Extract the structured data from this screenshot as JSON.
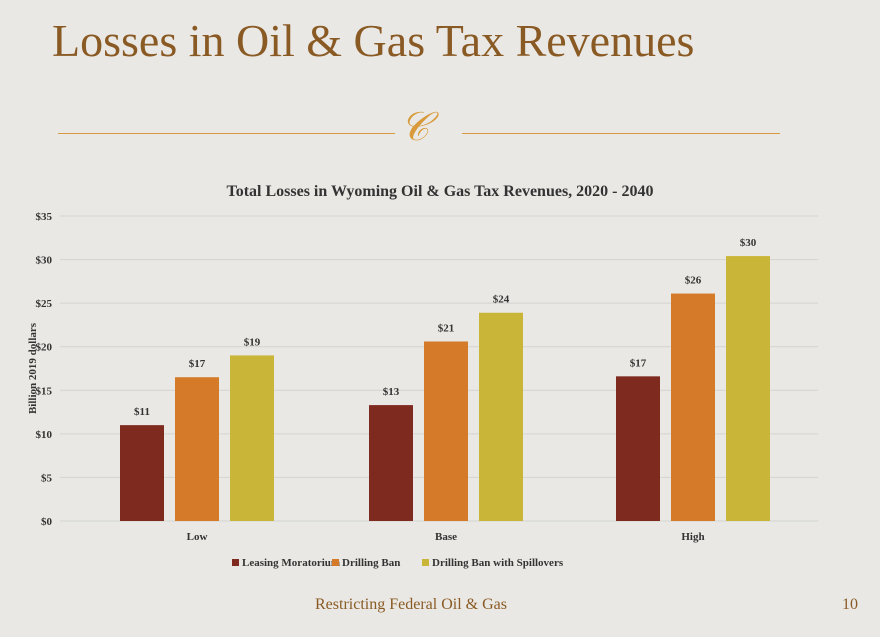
{
  "slide": {
    "title": "Losses in Oil & Gas Tax Revenues",
    "footer": "Restricting Federal Oil & Gas",
    "page_number": "10",
    "ornament": "ornament-icon"
  },
  "chart_data": {
    "type": "bar",
    "title": "Total Losses in Wyoming Oil & Gas Tax Revenues, 2020 - 2040",
    "xlabel": "",
    "ylabel": "Billion 2019 dollars",
    "ylim": [
      0,
      35
    ],
    "yticks": [
      0,
      5,
      10,
      15,
      20,
      25,
      30,
      35
    ],
    "ytick_labels": [
      "$0",
      "$5",
      "$10",
      "$15",
      "$20",
      "$25",
      "$30",
      "$35"
    ],
    "categories": [
      "Low",
      "Base",
      "High"
    ],
    "grid": true,
    "legend_placement": "bottom",
    "series": [
      {
        "name": "Leasing Moratorium",
        "color": "#7e2a1f",
        "values": [
          11.0,
          13.3,
          16.6
        ],
        "labels": [
          "$11",
          "$13",
          "$17"
        ]
      },
      {
        "name": "Drilling Ban",
        "color": "#d47a28",
        "values": [
          16.5,
          20.6,
          26.1
        ],
        "labels": [
          "$17",
          "$21",
          "$26"
        ]
      },
      {
        "name": "Drilling Ban with Spillovers",
        "color": "#c9b537",
        "values": [
          19.0,
          23.9,
          30.4
        ],
        "labels": [
          "$19",
          "$24",
          "$30"
        ]
      }
    ]
  }
}
